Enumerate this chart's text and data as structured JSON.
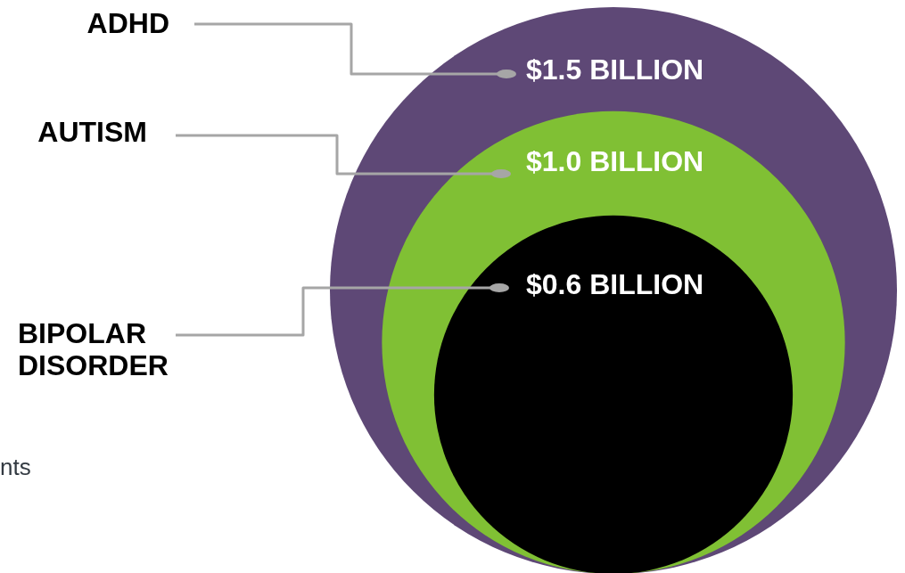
{
  "chart_data": {
    "type": "other",
    "categories": [
      "ADHD",
      "AUTISM",
      "BIPOLAR\nDISORDER"
    ],
    "values": [
      1.5,
      1.0,
      0.6
    ],
    "colors": [
      "#5e4876",
      "#80c034",
      "#000000"
    ],
    "value_labels": [
      "$1.5 BILLION",
      "$1.0 BILLION",
      "$0.6 BILLION"
    ],
    "annotations": [
      "nts"
    ]
  }
}
